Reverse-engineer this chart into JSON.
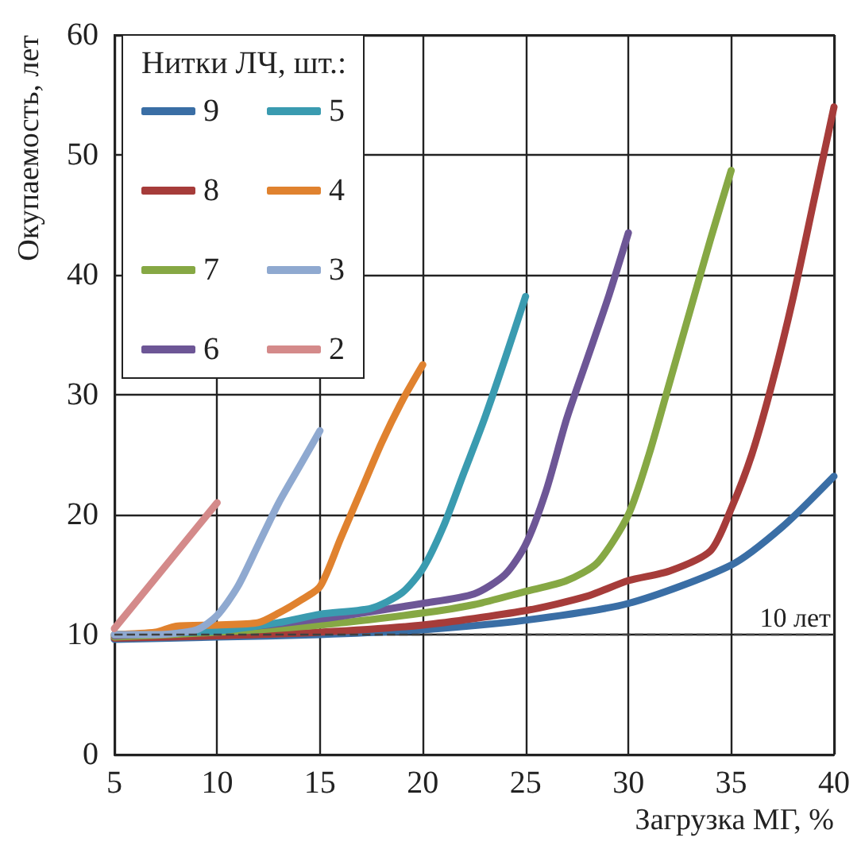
{
  "chart_data": {
    "type": "line",
    "xlabel": "Загрузка МГ, %",
    "ylabel": "Окупаемость, лет",
    "legend_title": "Нитки ЛЧ, шт.:",
    "legend": "top left",
    "grid": true,
    "marker": "none",
    "line_style": "solid",
    "xlim": [
      5,
      40
    ],
    "xticks": [
      5,
      10,
      15,
      20,
      25,
      30,
      35,
      40
    ],
    "ylim": [
      0,
      60
    ],
    "yticks": [
      0,
      10,
      20,
      30,
      40,
      50,
      60
    ],
    "ref_lines": [
      {
        "axis": "y",
        "value": 10,
        "label": "10 лет",
        "line_style": "dashed",
        "color": "#404040"
      }
    ],
    "series": [
      {
        "name": "9",
        "color": "#3a6ea5",
        "x": [
          5,
          10,
          15,
          20,
          25,
          30,
          35,
          37.5,
          40
        ],
        "values": [
          9.6,
          9.8,
          10,
          10.4,
          11.2,
          12.6,
          15.8,
          19,
          23.2
        ]
      },
      {
        "name": "8",
        "color": "#a63c3a",
        "x": [
          5,
          10,
          15,
          20,
          25,
          28,
          30,
          32,
          34,
          35,
          36,
          37,
          38,
          39,
          40
        ],
        "values": [
          9.7,
          9.9,
          10.2,
          10.8,
          12,
          13.2,
          14.5,
          15.3,
          17,
          20.5,
          25,
          31,
          38,
          46,
          54
        ]
      },
      {
        "name": "7",
        "color": "#86a844",
        "x": [
          5,
          10,
          15,
          20,
          22.5,
          25,
          27,
          28.5,
          30,
          31,
          32,
          33,
          34,
          35
        ],
        "values": [
          9.8,
          10.2,
          10.8,
          11.8,
          12.5,
          13.6,
          14.5,
          16,
          20,
          25,
          31,
          37,
          43,
          48.7
        ]
      },
      {
        "name": "6",
        "color": "#6d5696",
        "x": [
          5,
          10,
          15,
          20,
          22.5,
          24,
          25,
          26,
          27,
          28,
          29,
          30
        ],
        "values": [
          9.9,
          10.4,
          11.3,
          12.6,
          13.4,
          15,
          17.5,
          22,
          28,
          33,
          38,
          43.5
        ]
      },
      {
        "name": "5",
        "color": "#3a9bb0",
        "x": [
          5,
          10,
          13,
          15,
          17.5,
          19,
          20,
          21,
          22,
          23,
          24,
          25
        ],
        "values": [
          10,
          10.3,
          11,
          11.7,
          12.2,
          13.5,
          15.5,
          19,
          23.5,
          28,
          33,
          38.2
        ]
      },
      {
        "name": "4",
        "color": "#e0822f",
        "x": [
          5,
          7,
          8,
          10,
          12,
          13,
          14,
          15,
          16,
          17,
          18,
          19,
          20
        ],
        "values": [
          10,
          10.2,
          10.7,
          10.8,
          11,
          11.8,
          12.8,
          14,
          18,
          22,
          26,
          29.5,
          32.5
        ]
      },
      {
        "name": "3",
        "color": "#8fa9d0",
        "x": [
          5,
          7,
          9,
          10,
          11,
          12,
          13,
          14,
          15
        ],
        "values": [
          10,
          10,
          10.4,
          11.6,
          14,
          17.5,
          21,
          24,
          27
        ]
      },
      {
        "name": "2",
        "color": "#d48a8a",
        "x": [
          5,
          10
        ],
        "values": [
          10.5,
          21
        ]
      }
    ]
  }
}
